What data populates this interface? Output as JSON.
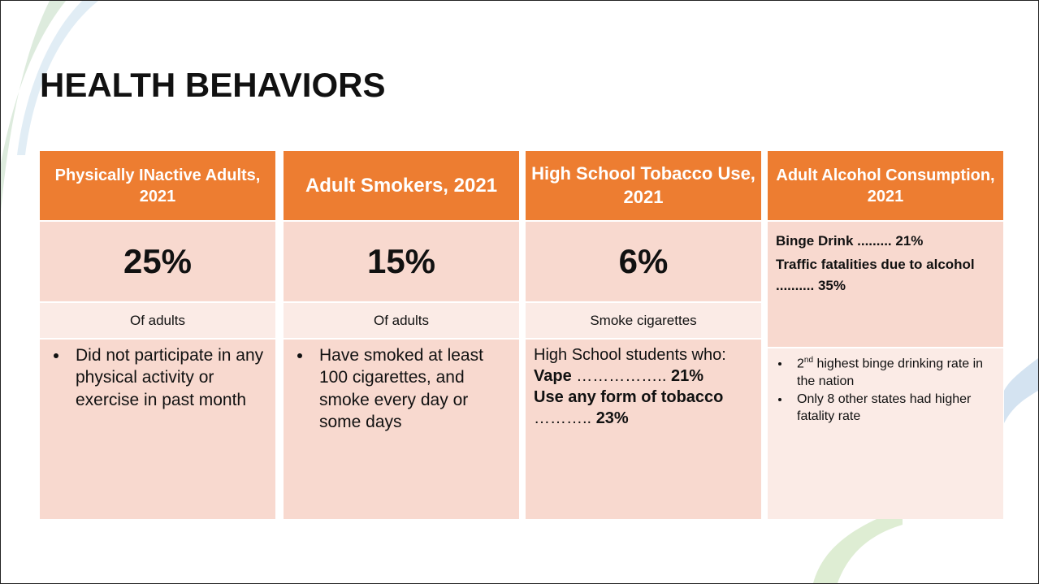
{
  "title": "HEALTH BEHAVIORS",
  "columns": [
    {
      "header": "Physically INactive Adults, 2021",
      "value": "25%",
      "subtitle": "Of adults",
      "bullets": [
        "Did not participate in any physical activity or exercise in past month"
      ]
    },
    {
      "header": "Adult Smokers, 2021",
      "value": "15%",
      "subtitle": "Of adults",
      "bullets": [
        "Have smoked at least 100 cigarettes, and smoke every day or some days"
      ]
    },
    {
      "header": "High School Tobacco Use, 2021",
      "value": "6%",
      "subtitle": "Smoke cigarettes",
      "intro": "High School students who:",
      "stats": [
        {
          "label": "Vape",
          "leader": "……………..",
          "value": "21%"
        },
        {
          "label": "Use any form of tobacco",
          "leader": "………..",
          "value": "23%"
        }
      ]
    },
    {
      "header": "Adult Alcohol Consumption, 2021",
      "stats": [
        {
          "label": "Binge Drink",
          "leader": ".........",
          "value": "21%"
        },
        {
          "label": "Traffic fatalities due to alcohol",
          "leader": "..........",
          "value": "35%"
        }
      ],
      "bullets": [
        {
          "number": "2",
          "suffix": "nd",
          "text": " highest binge drinking rate in the nation"
        },
        "Only 8 other states had higher fatality rate"
      ]
    }
  ]
}
